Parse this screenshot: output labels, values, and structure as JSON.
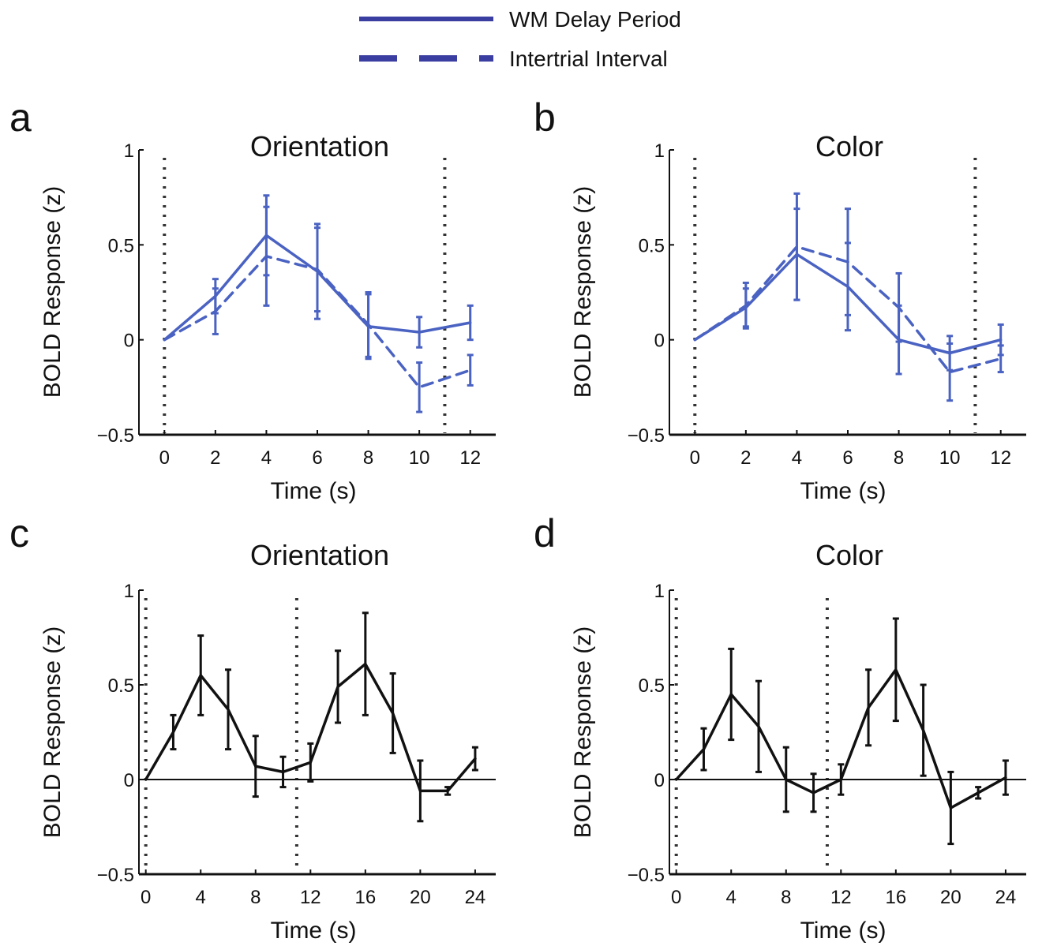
{
  "legend": {
    "entries": [
      {
        "label": "WM Delay Period",
        "style": "solid"
      },
      {
        "label": "Intertrial Interval",
        "style": "dashed"
      }
    ],
    "color": "#3a3ea0"
  },
  "colors": {
    "blue_series": "#4a62c2",
    "black_series": "#111111",
    "axis": "#111111",
    "marker_line": "#333333"
  },
  "chart_data": [
    {
      "panel": "a",
      "type": "line",
      "title": "Orientation",
      "xlabel": "Time (s)",
      "ylabel": "BOLD Response (z)",
      "xlim": [
        -1,
        13
      ],
      "ylim": [
        -0.5,
        1
      ],
      "xticks": [
        0,
        2,
        4,
        6,
        8,
        10,
        12
      ],
      "yticks": [
        1,
        0.5,
        0,
        -0.5
      ],
      "ytick_labels": [
        "1",
        "0.5",
        "0",
        "−0.5"
      ],
      "dotted_lines_x": [
        0,
        11
      ],
      "zero_line": false,
      "color": "blue",
      "series": [
        {
          "name": "WM Delay Period",
          "style": "solid",
          "x": [
            0,
            2,
            4,
            6,
            8,
            10,
            12
          ],
          "y": [
            0,
            0.23,
            0.55,
            0.36,
            0.07,
            0.04,
            0.09
          ],
          "err": [
            0,
            0.09,
            0.21,
            0.25,
            0.17,
            0.08,
            0.09
          ]
        },
        {
          "name": "Intertrial Interval",
          "style": "dashed",
          "x": [
            0,
            2,
            4,
            6,
            8,
            10,
            12
          ],
          "y": [
            0,
            0.15,
            0.44,
            0.37,
            0.08,
            -0.25,
            -0.16
          ],
          "err": [
            0,
            0.12,
            0.26,
            0.22,
            0.17,
            0.13,
            0.08
          ]
        }
      ]
    },
    {
      "panel": "b",
      "type": "line",
      "title": "Color",
      "xlabel": "Time (s)",
      "ylabel": "BOLD Response (z)",
      "xlim": [
        -1,
        13
      ],
      "ylim": [
        -0.5,
        1
      ],
      "xticks": [
        0,
        2,
        4,
        6,
        8,
        10,
        12
      ],
      "yticks": [
        1,
        0.5,
        0,
        -0.5
      ],
      "ytick_labels": [
        "1",
        "0.5",
        "0",
        "−0.5"
      ],
      "dotted_lines_x": [
        0,
        11
      ],
      "zero_line": false,
      "color": "blue",
      "series": [
        {
          "name": "WM Delay Period",
          "style": "solid",
          "x": [
            0,
            2,
            4,
            6,
            8,
            10,
            12
          ],
          "y": [
            0,
            0.17,
            0.45,
            0.28,
            0,
            -0.07,
            0
          ],
          "err": [
            0,
            0.1,
            0.24,
            0.23,
            0.18,
            0.09,
            0.08
          ]
        },
        {
          "name": "Intertrial Interval",
          "style": "dashed",
          "x": [
            0,
            2,
            4,
            6,
            8,
            10,
            12
          ],
          "y": [
            0,
            0.18,
            0.49,
            0.41,
            0.17,
            -0.17,
            -0.1
          ],
          "err": [
            0,
            0.12,
            0.28,
            0.28,
            0.18,
            0.15,
            0.07
          ]
        }
      ]
    },
    {
      "panel": "c",
      "type": "line",
      "title": "Orientation",
      "xlabel": "Time (s)",
      "ylabel": "BOLD Response (z)",
      "xlim": [
        -0.5,
        25.5
      ],
      "ylim": [
        -0.5,
        1
      ],
      "xticks": [
        0,
        4,
        8,
        12,
        16,
        20,
        24
      ],
      "yticks": [
        1,
        0.5,
        0,
        -0.5
      ],
      "ytick_labels": [
        "1",
        "0.5",
        "0",
        "−0.5"
      ],
      "dotted_lines_x": [
        0,
        11
      ],
      "zero_line": true,
      "color": "black",
      "series": [
        {
          "style": "solid",
          "x": [
            0,
            2,
            4,
            6,
            8,
            10,
            12,
            14,
            16,
            18,
            20,
            22,
            24
          ],
          "y": [
            0,
            0.25,
            0.55,
            0.37,
            0.07,
            0.04,
            0.09,
            0.49,
            0.61,
            0.35,
            -0.06,
            -0.06,
            0.11
          ],
          "err": [
            0,
            0.09,
            0.21,
            0.21,
            0.16,
            0.08,
            0.1,
            0.19,
            0.27,
            0.21,
            0.16,
            0.02,
            0.06
          ]
        }
      ]
    },
    {
      "panel": "d",
      "type": "line",
      "title": "Color",
      "xlabel": "Time (s)",
      "ylabel": "BOLD Response (z)",
      "xlim": [
        -0.5,
        25.5
      ],
      "ylim": [
        -0.5,
        1
      ],
      "xticks": [
        0,
        4,
        8,
        12,
        16,
        20,
        24
      ],
      "yticks": [
        1,
        0.5,
        0,
        -0.5
      ],
      "ytick_labels": [
        "1",
        "0.5",
        "0",
        "−0.5"
      ],
      "dotted_lines_x": [
        0,
        11
      ],
      "zero_line": true,
      "color": "black",
      "series": [
        {
          "style": "solid",
          "x": [
            0,
            2,
            4,
            6,
            8,
            10,
            12,
            14,
            16,
            18,
            20,
            22,
            24
          ],
          "y": [
            0,
            0.16,
            0.45,
            0.28,
            0,
            -0.07,
            0,
            0.38,
            0.58,
            0.26,
            -0.15,
            -0.07,
            0.01
          ],
          "err": [
            0,
            0.11,
            0.24,
            0.24,
            0.17,
            0.1,
            0.08,
            0.2,
            0.27,
            0.24,
            0.19,
            0.03,
            0.09
          ]
        }
      ]
    }
  ]
}
